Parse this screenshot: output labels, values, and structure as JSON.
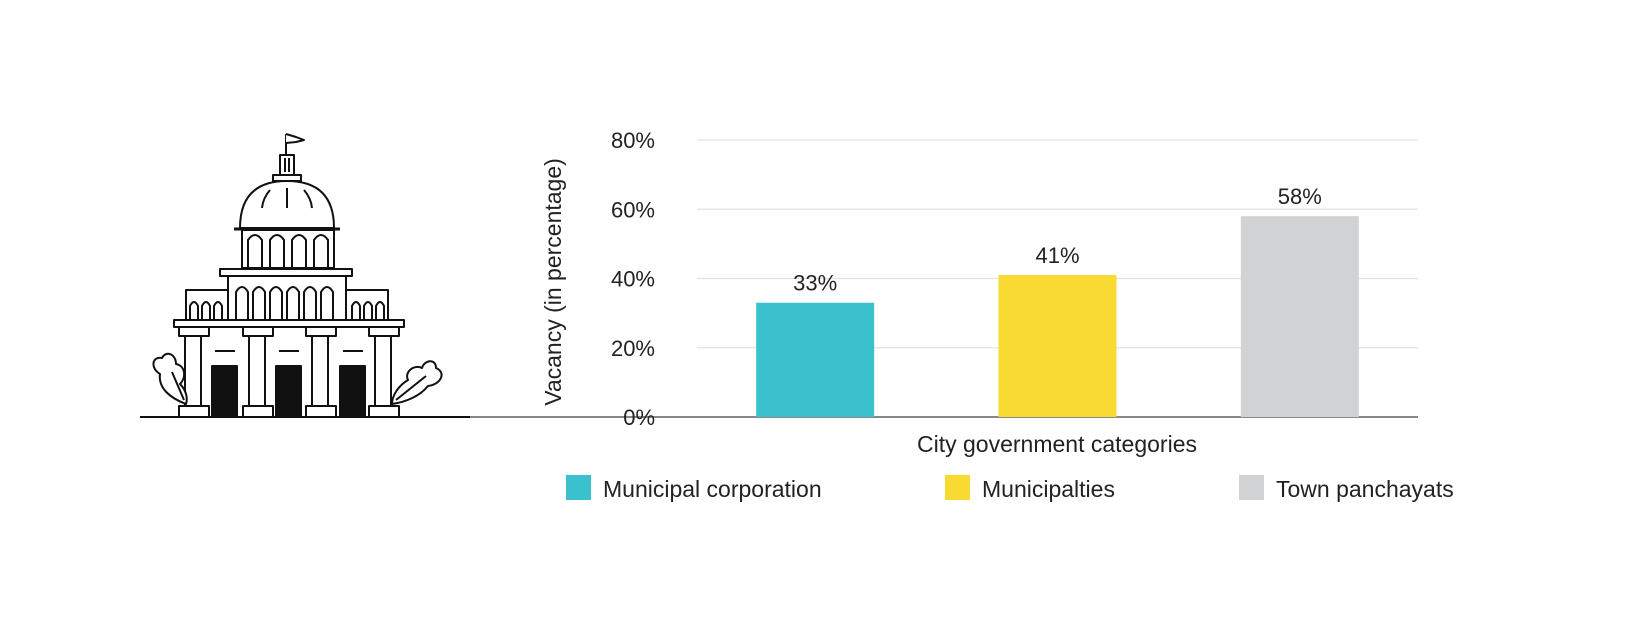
{
  "illustration": {
    "icon": "government-building-icon"
  },
  "chart_data": {
    "type": "bar",
    "title": "",
    "xlabel": "City government categories",
    "ylabel": "Vacancy (in percentage)",
    "ylim": [
      0,
      80
    ],
    "yticks": [
      0,
      20,
      40,
      60,
      80
    ],
    "ytick_labels": [
      "0%",
      "20%",
      "40%",
      "60%",
      "80%"
    ],
    "grid": true,
    "legend_position": "bottom",
    "categories": [
      "Municipal corporation",
      "Municipalties",
      "Town panchayats"
    ],
    "values": [
      33,
      41,
      58
    ],
    "value_labels": [
      "33%",
      "41%",
      "58%"
    ],
    "colors": [
      "#3bc1cd",
      "#f9da33",
      "#d1d2d4"
    ]
  }
}
